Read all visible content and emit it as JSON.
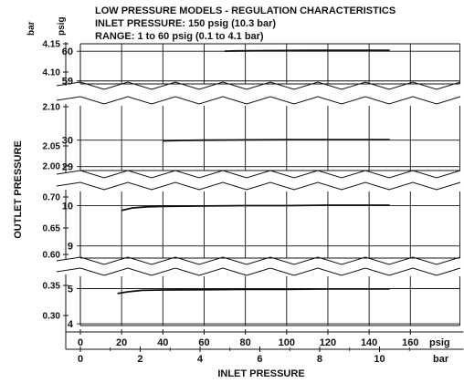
{
  "title": {
    "line1": "LOW PRESSURE MODELS - REGULATION CHARACTERISTICS",
    "line2": "INLET PRESSURE: 150 psig (10.3 bar)",
    "line3": "RANGE: 1 to 60 psig (0.1 to 4.1 bar)"
  },
  "colors": {
    "line": "#111111",
    "background": "#ffffff"
  },
  "chart_data": {
    "type": "line",
    "title": "LOW PRESSURE MODELS - REGULATION CHARACTERISTICS",
    "subtitle": [
      "INLET PRESSURE: 150 psig (10.3 bar)",
      "RANGE: 1 to 60 psig (0.1 to 4.1 bar)"
    ],
    "xlabel": "INLET PRESSURE",
    "ylabel": "OUTLET PRESSURE",
    "y_units": {
      "left": "bar",
      "right": "psig"
    },
    "x_axis": {
      "psig": {
        "ticks": [
          0,
          20,
          40,
          60,
          80,
          100,
          120,
          140,
          160
        ],
        "unit": "psig"
      },
      "bar": {
        "ticks": [
          0,
          2,
          4,
          6,
          8,
          10
        ],
        "unit": "bar"
      },
      "xlim_psig": [
        0,
        184
      ]
    },
    "grid": true,
    "panels": [
      {
        "ylim_psig": [
          58.9,
          60.25
        ],
        "psig_ticks": [
          59,
          60
        ],
        "bar_ticks": [
          "4.10",
          "4.15"
        ],
        "series": [
          {
            "x": [
              70,
              76,
              90,
              110,
              130,
              150
            ],
            "y": [
              60.0,
              60.01,
              60.02,
              60.03,
              60.03,
              60.03
            ]
          }
        ]
      },
      {
        "ylim_psig": [
          28.85,
          31.3
        ],
        "psig_ticks": [
          29,
          30
        ],
        "bar_ticks": [
          "2.00",
          "2.05",
          "2.10"
        ],
        "series": [
          {
            "x": [
              40,
              50,
              60,
              80,
              100,
              120,
              150
            ],
            "y": [
              29.97,
              29.99,
              30.0,
              30.01,
              30.02,
              30.02,
              30.02
            ]
          }
        ]
      },
      {
        "ylim_psig": [
          8.7,
          10.35
        ],
        "psig_ticks": [
          9,
          10
        ],
        "bar_ticks": [
          "0.60",
          "0.65",
          "0.70"
        ],
        "series": [
          {
            "x": [
              20,
              25,
              32,
              40,
              60,
              80,
              100,
              120,
              150
            ],
            "y": [
              9.88,
              9.94,
              9.97,
              9.98,
              9.99,
              10.0,
              10.0,
              10.01,
              10.01
            ]
          }
        ]
      },
      {
        "ylim_psig": [
          3.95,
          5.35
        ],
        "psig_ticks": [
          4,
          5
        ],
        "bar_ticks": [
          "0.30",
          "0.35"
        ],
        "series": [
          {
            "x": [
              18,
              23,
              30,
              40,
              60,
              80,
              100,
              120,
              150
            ],
            "y": [
              4.86,
              4.91,
              4.95,
              4.96,
              4.97,
              4.98,
              4.98,
              4.99,
              4.99
            ]
          }
        ]
      }
    ]
  }
}
